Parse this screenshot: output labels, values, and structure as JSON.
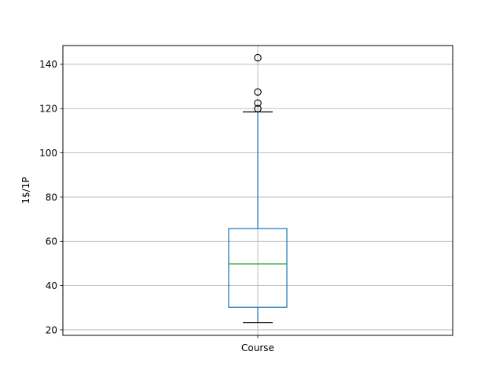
{
  "chart_data": {
    "type": "box",
    "title": "",
    "xlabel": "",
    "ylabel": "1$/1P",
    "categories": [
      "Course"
    ],
    "ylim": [
      17.5,
      148.5
    ],
    "yticks": [
      20,
      40,
      60,
      80,
      100,
      120,
      140
    ],
    "grid": true,
    "boxes": [
      {
        "category": "Course",
        "whisker_low": 23.3,
        "q1": 30.2,
        "median": 49.8,
        "q3": 65.8,
        "whisker_high": 118.5,
        "outliers": [
          120,
          122.5,
          127.5,
          143
        ]
      }
    ],
    "colors": {
      "box": "#1f77b4",
      "median": "#2ca02c",
      "whisker": "#1f77b4",
      "cap": "#000000",
      "outlier": "#000000",
      "grid": "#b0b0b0"
    }
  }
}
